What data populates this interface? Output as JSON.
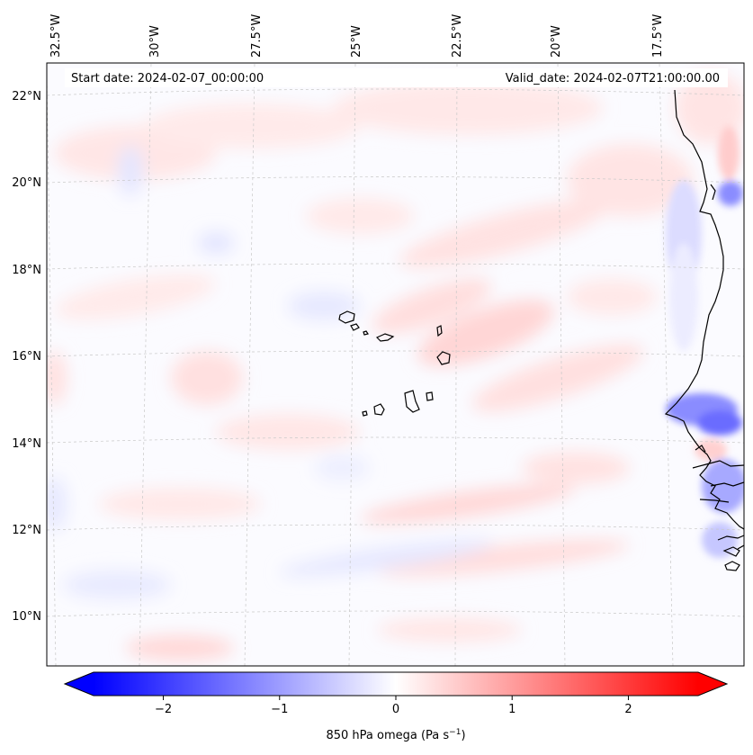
{
  "header": {
    "start_date": "Start date: 2024-02-07_00:00:00",
    "valid_date": "Valid_date: 2024-02-07T21:00:00.00"
  },
  "map": {
    "projection": "lambert conformal",
    "region": "Cape Verde / West African coast",
    "field": "850 hPa omega",
    "lon_labels": [
      "32.5°W",
      "30°W",
      "27.5°W",
      "25°W",
      "22.5°W",
      "20°W",
      "17.5°W"
    ],
    "lat_labels": [
      "22°N",
      "20°N",
      "18°N",
      "16°N",
      "14°N",
      "12°N",
      "10°N"
    ],
    "gridlines": true,
    "coastline_color": "#000000"
  },
  "colorbar": {
    "label_main": "850 hPa omega (Pa s",
    "label_sup": "−1",
    "label_end": ")",
    "ticks": [
      "−2",
      "−1",
      "0",
      "1",
      "2"
    ],
    "tick_values": [
      -2,
      -1,
      0,
      1,
      2
    ],
    "range": [
      -2.6,
      2.6
    ],
    "extend": "both",
    "cmap": "bwr",
    "color_min": "#0000ff",
    "color_mid": "#ffffff",
    "color_max": "#ff0000"
  }
}
